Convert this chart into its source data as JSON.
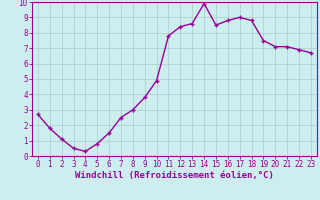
{
  "x": [
    0,
    1,
    2,
    3,
    4,
    5,
    6,
    7,
    8,
    9,
    10,
    11,
    12,
    13,
    14,
    15,
    16,
    17,
    18,
    19,
    20,
    21,
    22,
    23
  ],
  "y": [
    2.7,
    1.8,
    1.1,
    0.5,
    0.3,
    0.8,
    1.5,
    2.5,
    3.0,
    3.8,
    4.9,
    7.8,
    8.4,
    8.6,
    9.9,
    8.5,
    8.8,
    9.0,
    8.8,
    7.5,
    7.1,
    7.1,
    6.9,
    6.7
  ],
  "line_color": "#990099",
  "marker": "+",
  "marker_size": 3,
  "linewidth": 1.0,
  "xlabel": "Windchill (Refroidissement éolien,°C)",
  "xlabel_color": "#990099",
  "background_color": "#cceeee",
  "grid_color": "#aacccc",
  "tick_color": "#990099",
  "spine_color": "#990099",
  "xlim": [
    -0.5,
    23.5
  ],
  "ylim": [
    0,
    10
  ],
  "yticks": [
    0,
    1,
    2,
    3,
    4,
    5,
    6,
    7,
    8,
    9,
    10
  ],
  "xticks": [
    0,
    1,
    2,
    3,
    4,
    5,
    6,
    7,
    8,
    9,
    10,
    11,
    12,
    13,
    14,
    15,
    16,
    17,
    18,
    19,
    20,
    21,
    22,
    23
  ],
  "tick_fontsize": 5.5,
  "xlabel_fontsize": 6.5
}
